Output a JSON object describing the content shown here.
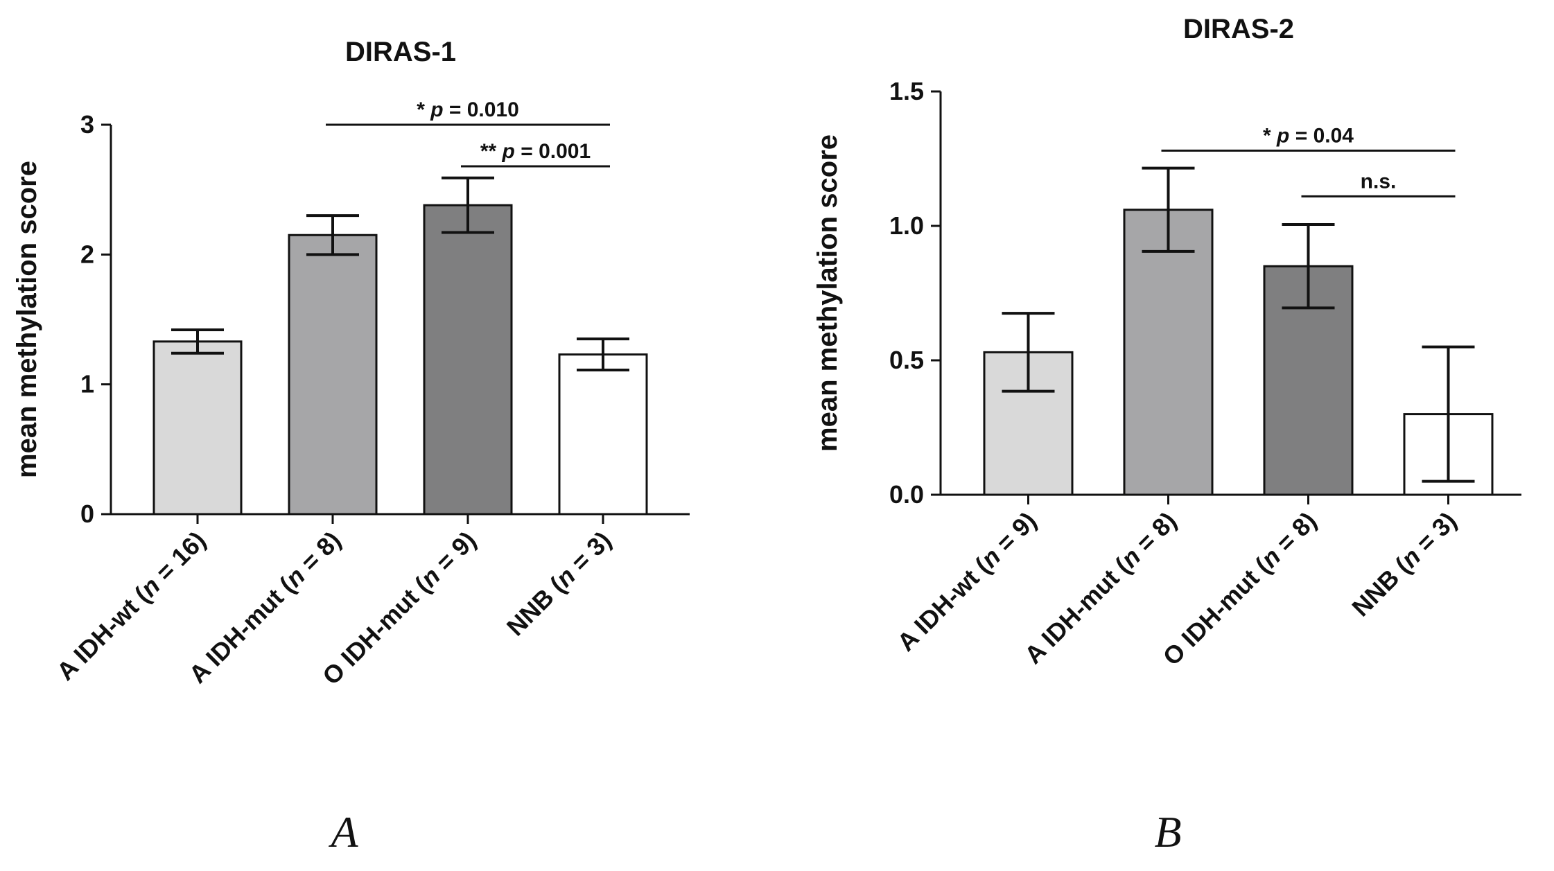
{
  "chart_data": [
    {
      "type": "bar",
      "panel": "A",
      "title": "DIRAS-1",
      "ylabel": "mean methylation score",
      "xlabel": "",
      "ylim": [
        0,
        3
      ],
      "yticks": [
        "0",
        "1",
        "2",
        "3"
      ],
      "categories": [
        {
          "name": "A IDH-wt",
          "n_label": "n",
          "n_value": "16"
        },
        {
          "name": "A IDH-mut",
          "n_label": "n",
          "n_value": "8"
        },
        {
          "name": "O IDH-mut",
          "n_label": "n",
          "n_value": "9"
        },
        {
          "name": "NNB",
          "n_label": "n",
          "n_value": "3"
        }
      ],
      "values": [
        1.33,
        2.15,
        2.38,
        1.23
      ],
      "errors": [
        0.09,
        0.15,
        0.21,
        0.12
      ],
      "fills": [
        "#d9d9d9",
        "#a6a6a8",
        "#7f7f80",
        "#ffffff"
      ],
      "significance": [
        {
          "from": 1,
          "to": 3,
          "level": 3.0,
          "stars": "*",
          "p_label": "p",
          "p_text": " = 0.010"
        },
        {
          "from": 2,
          "to": 3,
          "level": 2.68,
          "stars": "**",
          "p_label": "p",
          "p_text": " = 0.001"
        }
      ]
    },
    {
      "type": "bar",
      "panel": "B",
      "title": "DIRAS-2",
      "ylabel": "mean methylation score",
      "xlabel": "",
      "ylim": [
        0,
        1.5
      ],
      "yticks": [
        "0.0",
        "0.5",
        "1.0",
        "1.5"
      ],
      "categories": [
        {
          "name": "A IDH-wt",
          "n_label": "n",
          "n_value": "9"
        },
        {
          "name": "A IDH-mut",
          "n_label": "n",
          "n_value": "8"
        },
        {
          "name": "O IDH-mut",
          "n_label": "n",
          "n_value": "8"
        },
        {
          "name": "NNB",
          "n_label": "n",
          "n_value": "3"
        }
      ],
      "values": [
        0.53,
        1.06,
        0.85,
        0.3
      ],
      "errors": [
        0.145,
        0.155,
        0.155,
        0.25
      ],
      "fills": [
        "#d9d9d9",
        "#a6a6a8",
        "#7f7f80",
        "#ffffff"
      ],
      "significance": [
        {
          "from": 1,
          "to": 3,
          "level": 1.28,
          "stars": "*",
          "p_label": "p",
          "p_text": " = 0.04"
        },
        {
          "from": 2,
          "to": 3,
          "level": 1.11,
          "stars": "",
          "p_label": "",
          "p_text": "n.s."
        }
      ]
    }
  ]
}
